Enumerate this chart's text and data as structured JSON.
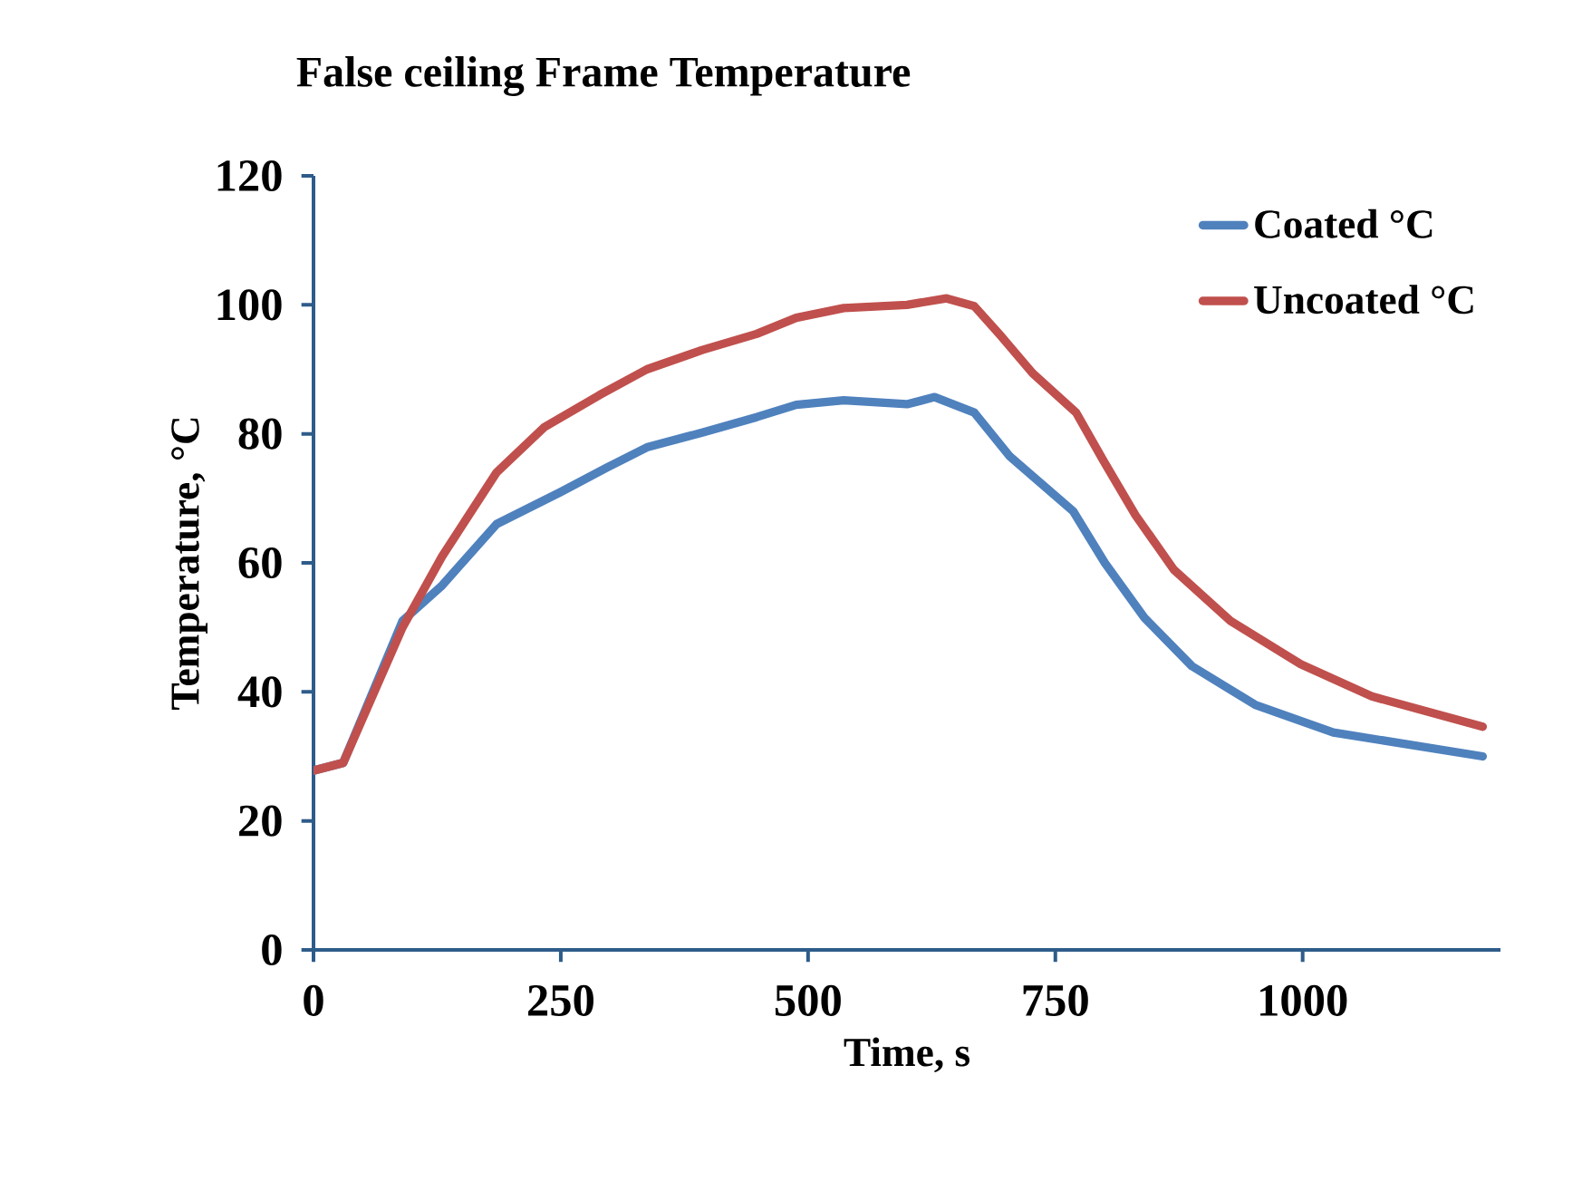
{
  "chart_data": {
    "type": "line",
    "title": "False ceiling Frame Temperature",
    "xlabel": "Time, s",
    "ylabel": "Temperature,  °C",
    "xlim": [
      0,
      1200
    ],
    "xticks": [
      0,
      250,
      500,
      750,
      1000
    ],
    "ylim": [
      0,
      120
    ],
    "yticks": [
      0,
      20,
      40,
      60,
      80,
      100,
      120
    ],
    "legend": "top right",
    "marker": "none",
    "line_style": "solid",
    "grid": false,
    "series": [
      {
        "name": "Coated °C",
        "color": "#4f81bd",
        "x": [
          0,
          30,
          90,
          130,
          185,
          250,
          297,
          337,
          393,
          448,
          488,
          536,
          600,
          628,
          668,
          704,
          768,
          800,
          840,
          888,
          952,
          1031,
          1182
        ],
        "values": [
          27.8,
          29,
          51,
          56.5,
          66,
          71,
          74.8,
          77.9,
          80.2,
          82.6,
          84.5,
          85.2,
          84.6,
          85.7,
          83.3,
          76.5,
          68,
          60,
          51.5,
          44,
          38,
          33.7,
          30
        ]
      },
      {
        "name": "Uncoated °C",
        "color": "#c0504d",
        "x": [
          0,
          30,
          90,
          130,
          185,
          233,
          289,
          337,
          393,
          448,
          488,
          536,
          600,
          640,
          668,
          696,
          727,
          771,
          798,
          831,
          870,
          927,
          998,
          1070,
          1182
        ],
        "values": [
          27.8,
          29,
          50,
          61,
          74,
          81,
          86,
          90,
          93,
          95.5,
          98,
          99.5,
          100,
          101,
          99.8,
          95,
          89.4,
          83.3,
          76,
          67.4,
          58.9,
          51,
          44.3,
          39.3,
          34.6
        ]
      }
    ]
  }
}
